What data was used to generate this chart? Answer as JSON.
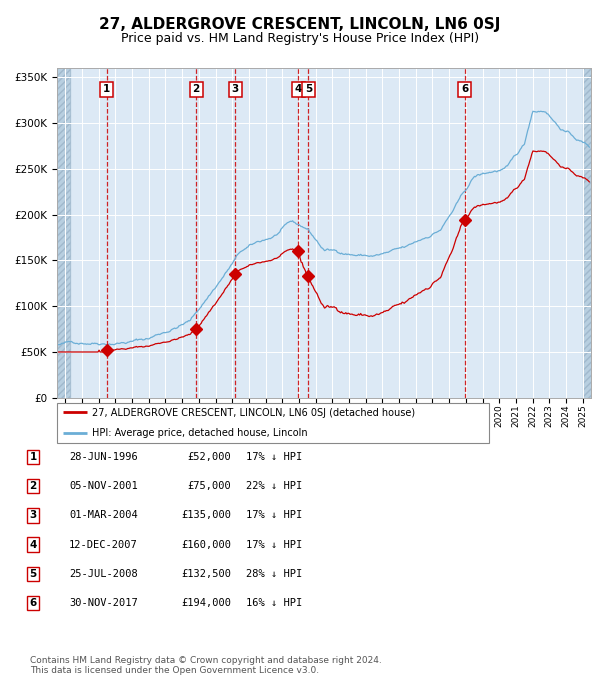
{
  "title": "27, ALDERGROVE CRESCENT, LINCOLN, LN6 0SJ",
  "subtitle": "Price paid vs. HM Land Registry's House Price Index (HPI)",
  "title_fontsize": 11,
  "subtitle_fontsize": 9,
  "sale_dates_dec": [
    1996.49,
    2001.84,
    2004.17,
    2007.95,
    2008.56,
    2017.92
  ],
  "sale_prices": [
    52000,
    75000,
    135000,
    160000,
    132500,
    194000
  ],
  "sale_labels": [
    "1",
    "2",
    "3",
    "4",
    "5",
    "6"
  ],
  "legend_line1": "27, ALDERGROVE CRESCENT, LINCOLN, LN6 0SJ (detached house)",
  "legend_line2": "HPI: Average price, detached house, Lincoln",
  "table_rows": [
    [
      "1",
      "28-JUN-1996",
      "£52,000",
      "17% ↓ HPI"
    ],
    [
      "2",
      "05-NOV-2001",
      "£75,000",
      "22% ↓ HPI"
    ],
    [
      "3",
      "01-MAR-2004",
      "£135,000",
      "17% ↓ HPI"
    ],
    [
      "4",
      "12-DEC-2007",
      "£160,000",
      "17% ↓ HPI"
    ],
    [
      "5",
      "25-JUL-2008",
      "£132,500",
      "28% ↓ HPI"
    ],
    [
      "6",
      "30-NOV-2017",
      "£194,000",
      "16% ↓ HPI"
    ]
  ],
  "footnote1": "Contains HM Land Registry data © Crown copyright and database right 2024.",
  "footnote2": "This data is licensed under the Open Government Licence v3.0.",
  "hpi_color": "#6baed6",
  "price_color": "#cc0000",
  "plot_bg": "#dce9f5",
  "grid_color": "#ffffff",
  "hatch_color": "#b8cfe0",
  "ylim": [
    0,
    360000
  ],
  "yticks": [
    0,
    50000,
    100000,
    150000,
    200000,
    250000,
    300000,
    350000
  ],
  "ytick_labels": [
    "£0",
    "£50K",
    "£100K",
    "£150K",
    "£200K",
    "£250K",
    "£300K",
    "£350K"
  ],
  "xlim_start": 1993.5,
  "xlim_end": 2025.5,
  "xticks": [
    1994,
    1995,
    1996,
    1997,
    1998,
    1999,
    2000,
    2001,
    2002,
    2003,
    2004,
    2005,
    2006,
    2007,
    2008,
    2009,
    2010,
    2011,
    2012,
    2013,
    2014,
    2015,
    2016,
    2017,
    2018,
    2019,
    2020,
    2021,
    2022,
    2023,
    2024,
    2025
  ]
}
